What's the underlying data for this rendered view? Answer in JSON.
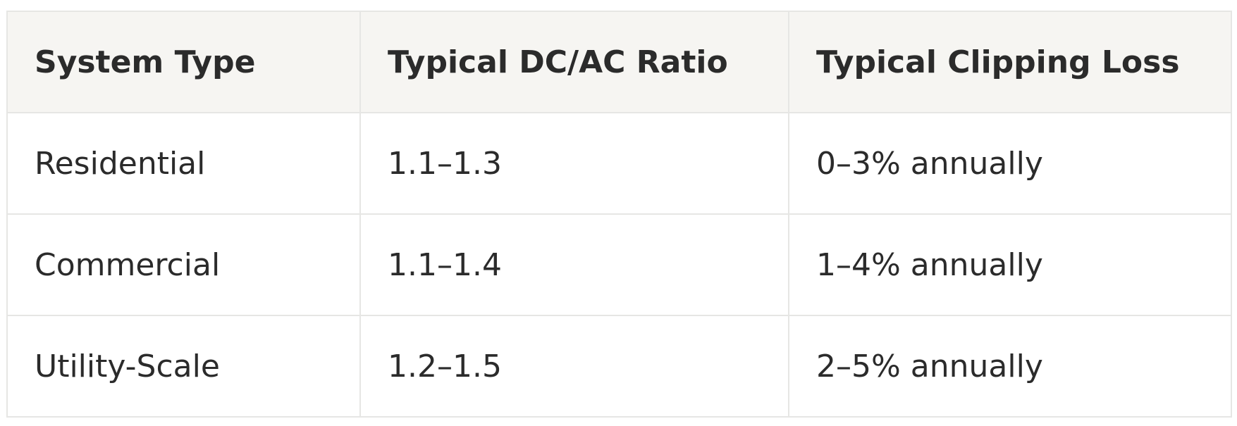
{
  "table": {
    "header": [
      "System Type",
      "Typical DC/AC Ratio",
      "Typical Clipping Loss"
    ],
    "rows": [
      [
        "Residential",
        "1.1–1.3",
        "0–3% annually"
      ],
      [
        "Commercial",
        "1.1–1.4",
        "1–4% annually"
      ],
      [
        "Utility-Scale",
        "1.2–1.5",
        "2–5% annually"
      ]
    ]
  }
}
